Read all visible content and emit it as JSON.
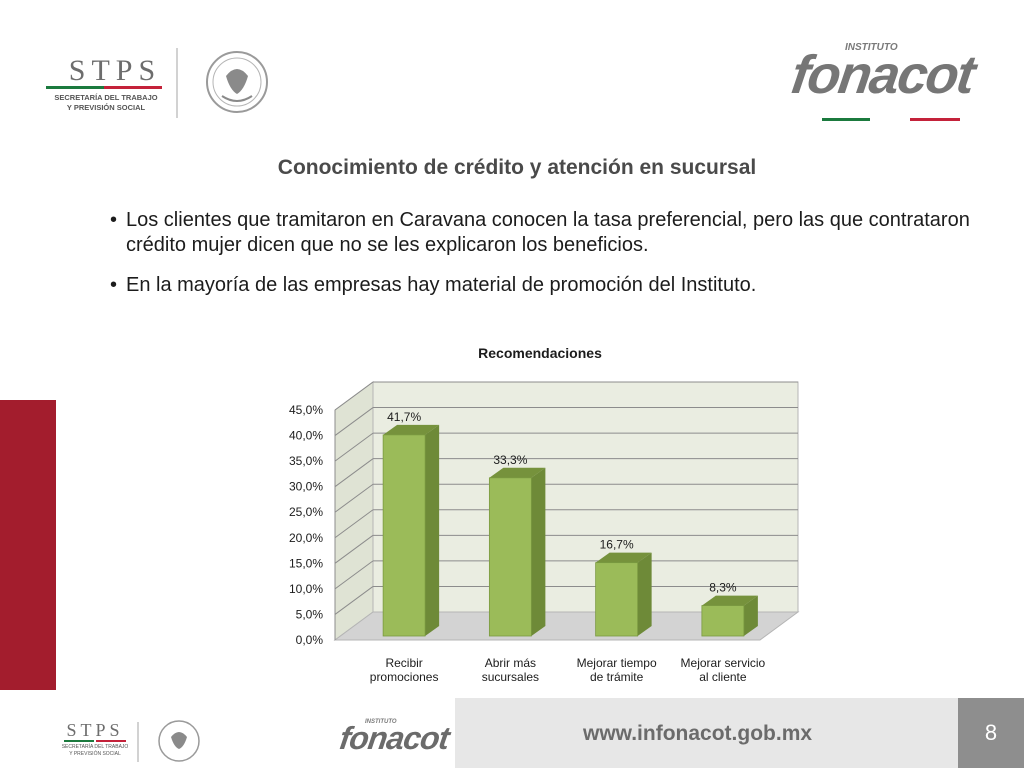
{
  "header": {
    "stps_word": "STPS",
    "stps_sub_line1": "SECRETARÍA DEL TRABAJO",
    "stps_sub_line2": "Y PREVISIÓN SOCIAL",
    "fonacot_prefix": "INSTITUTO",
    "fonacot_word": "fonacot"
  },
  "title": "Conocimiento de crédito y atención en sucursal",
  "bullets": [
    "Los clientes que tramitaron en Caravana conocen la tasa preferencial, pero las que contrataron crédito mujer dicen que no se les explicaron los beneficios.",
    "En la mayoría de las empresas hay material de promoción del Instituto."
  ],
  "bullet_symbol": "•",
  "chart_data": {
    "type": "bar",
    "title": "Recomendaciones",
    "categories": [
      "Recibir promociones",
      "Abrir más sucursales",
      "Mejorar tiempo de trámite",
      "Mejorar servicio al cliente"
    ],
    "category_lines": [
      [
        "Recibir",
        "promociones"
      ],
      [
        "Abrir más",
        "sucursales"
      ],
      [
        "Mejorar tiempo",
        "de trámite"
      ],
      [
        "Mejorar servicio",
        "al cliente"
      ]
    ],
    "values": [
      41.7,
      33.3,
      16.7,
      8.3
    ],
    "data_labels": [
      "41,7%",
      "33,3%",
      "16,7%",
      "8,3%"
    ],
    "yticks": [
      "0,0%",
      "5,0%",
      "10,0%",
      "15,0%",
      "20,0%",
      "25,0%",
      "30,0%",
      "35,0%",
      "40,0%",
      "45,0%"
    ],
    "ylim": [
      0,
      45
    ],
    "grid": true,
    "legend": "none",
    "bar_color": "#9bbb59",
    "bar_side_color": "#6e8a38",
    "bar_top_color": "#76923c",
    "wall_color": "#eaede1"
  },
  "footer": {
    "url": "www.infonacot.gob.mx",
    "page_number": "8",
    "stps_word": "STPS",
    "stps_sub_line1": "SECRETARÍA DEL TRABAJO",
    "stps_sub_line2": "Y PREVISIÓN SOCIAL",
    "fonacot_prefix": "INSTITUTO",
    "fonacot_word": "fonacot"
  },
  "colors": {
    "brand_red": "#a31d2d",
    "flag_green": "#1b7a3e",
    "flag_red": "#c4223a",
    "grey_text": "#6b6b6b"
  }
}
